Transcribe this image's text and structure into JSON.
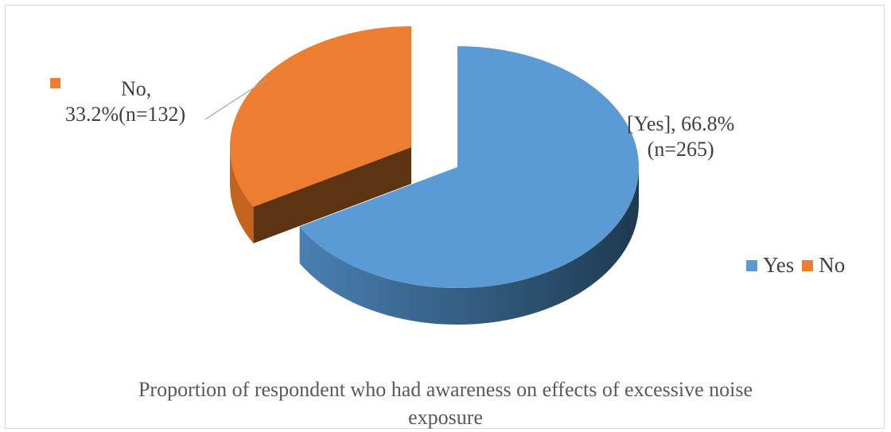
{
  "chart_data": {
    "type": "pie",
    "three_d": true,
    "exploded": true,
    "categories": [
      "Yes",
      "No"
    ],
    "values": [
      66.8,
      33.2
    ],
    "counts": [
      265,
      132
    ],
    "colors": [
      "#5b9bd5",
      "#ed7d31"
    ],
    "data_labels": {
      "yes_line1": "[Yes], 66.8%",
      "yes_line2": "(n=265)",
      "no_line1": "No,",
      "no_line2": "33.2%(n=132)"
    },
    "legend": {
      "position": "right",
      "items": [
        {
          "label": "Yes",
          "color": "#5b9bd5"
        },
        {
          "label": "No",
          "color": "#ed7d31"
        }
      ]
    },
    "caption_line1": "Proportion of respondent who had awareness on effects of excessive noise",
    "caption_line2": "exposure"
  }
}
